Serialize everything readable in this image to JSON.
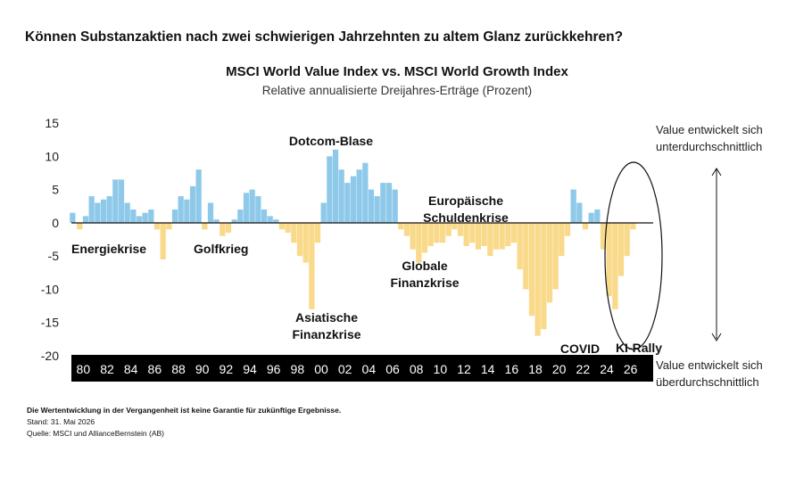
{
  "headline": "Können Substanzaktien nach zwei schwierigen Jahrzehnten zu altem Glanz zurückkehren?",
  "chart_data": {
    "type": "bar",
    "title": "MSCI World Value Index vs. MSCI World Growth Index",
    "subtitle": "Relative annualisierte Dreijahres-Erträge (Prozent)",
    "x_unit": "year",
    "xlim": [
      1979.0,
      2027.9
    ],
    "ylim": [
      -20,
      15
    ],
    "y_ticks": [
      15,
      10,
      5,
      0,
      -5,
      -10,
      -15,
      -20
    ],
    "x_tick_labels": [
      "80",
      "82",
      "84",
      "86",
      "88",
      "90",
      "92",
      "94",
      "96",
      "98",
      "00",
      "02",
      "04",
      "06",
      "08",
      "10",
      "12",
      "14",
      "16",
      "18",
      "20",
      "22",
      "24",
      "26"
    ],
    "x_tick_years": [
      1980,
      1982,
      1984,
      1986,
      1988,
      1990,
      1992,
      1994,
      1996,
      1998,
      2000,
      2002,
      2004,
      2006,
      2008,
      2010,
      2012,
      2014,
      2016,
      2018,
      2020,
      2022,
      2024,
      2026
    ],
    "grid": false,
    "positive_color": "#8ec9ea",
    "negative_color": "#f9d98a",
    "series": {
      "x": [
        1979.1,
        1979.7,
        1980.2,
        1980.7,
        1981.2,
        1981.7,
        1982.2,
        1982.7,
        1983.2,
        1983.7,
        1984.2,
        1984.7,
        1985.2,
        1985.7,
        1986.2,
        1986.7,
        1987.2,
        1987.7,
        1988.2,
        1988.7,
        1989.2,
        1989.7,
        1990.2,
        1990.7,
        1991.2,
        1991.7,
        1992.2,
        1992.7,
        1993.2,
        1993.7,
        1994.2,
        1994.7,
        1995.2,
        1995.7,
        1996.2,
        1996.7,
        1997.2,
        1997.7,
        1998.2,
        1998.7,
        1999.2,
        1999.7,
        2000.2,
        2000.7,
        2001.2,
        2001.7,
        2002.2,
        2002.7,
        2003.2,
        2003.7,
        2004.2,
        2004.7,
        2005.2,
        2005.7,
        2006.2,
        2006.7,
        2007.2,
        2007.7,
        2008.2,
        2008.7,
        2009.2,
        2009.7,
        2010.2,
        2010.7,
        2011.2,
        2011.7,
        2012.2,
        2012.7,
        2013.2,
        2013.7,
        2014.2,
        2014.7,
        2015.2,
        2015.7,
        2016.2,
        2016.7,
        2017.2,
        2017.7,
        2018.2,
        2018.7,
        2019.2,
        2019.7,
        2020.2,
        2020.7,
        2021.2,
        2021.7,
        2022.2,
        2022.7,
        2023.2,
        2023.7,
        2024.2,
        2024.7,
        2025.2,
        2025.7,
        2026.2,
        2026.7
      ],
      "values": [
        1.5,
        -1,
        1,
        4,
        3,
        3.5,
        4,
        6.5,
        6.5,
        3,
        2,
        1,
        1.5,
        2,
        -1,
        -5.5,
        -1,
        2,
        4,
        3.5,
        5.5,
        8,
        -1,
        3,
        0.5,
        -2,
        -1.5,
        0.5,
        2,
        4.5,
        5,
        4,
        2,
        1,
        0.5,
        -1,
        -1.5,
        -3,
        -5,
        -6,
        -13,
        -3,
        3,
        10,
        11,
        8,
        6,
        7,
        8,
        9,
        5,
        4,
        6,
        6,
        5,
        -1,
        -2,
        -4,
        -6,
        -4.5,
        -3.5,
        -3,
        -3,
        -2,
        -1,
        -2,
        -3.5,
        -3,
        -4,
        -3.5,
        -5,
        -4,
        -4,
        -3.5,
        -3,
        -7,
        -10,
        -14,
        -17,
        -16,
        -12,
        -10,
        -5,
        -2,
        5,
        3,
        -1,
        1.5,
        2,
        -4,
        -11,
        -13,
        -8,
        -5,
        -1,
        0
      ]
    },
    "annotations": [
      {
        "text": [
          "Energiekrise"
        ]
      },
      {
        "text": [
          "Golfkrieg"
        ]
      },
      {
        "text": [
          "Dotcom-Blase"
        ]
      },
      {
        "text": [
          "Asiatische",
          "Finanzkrise"
        ]
      },
      {
        "text": [
          "Europäische",
          "Schuldenkrise"
        ]
      },
      {
        "text": [
          "Globale",
          "Finanzkrise"
        ]
      },
      {
        "text": [
          "COVID"
        ]
      },
      {
        "text": [
          "KI-Rally"
        ]
      }
    ]
  },
  "right_labels": {
    "top_line1": "Value entwickelt sich",
    "top_line2": "unterdurchschnittlich",
    "bottom_line1": "Value entwickelt sich",
    "bottom_line2": "überdurchschnittlich"
  },
  "footnotes": {
    "disclaimer": "Die Wertentwicklung in der Vergangenheit ist keine Garantie für zukünftige Ergebnisse.",
    "stand": "Stand: 31. Mai 2026",
    "quelle": "Quelle: MSCI und AllianceBernstein (AB)"
  }
}
